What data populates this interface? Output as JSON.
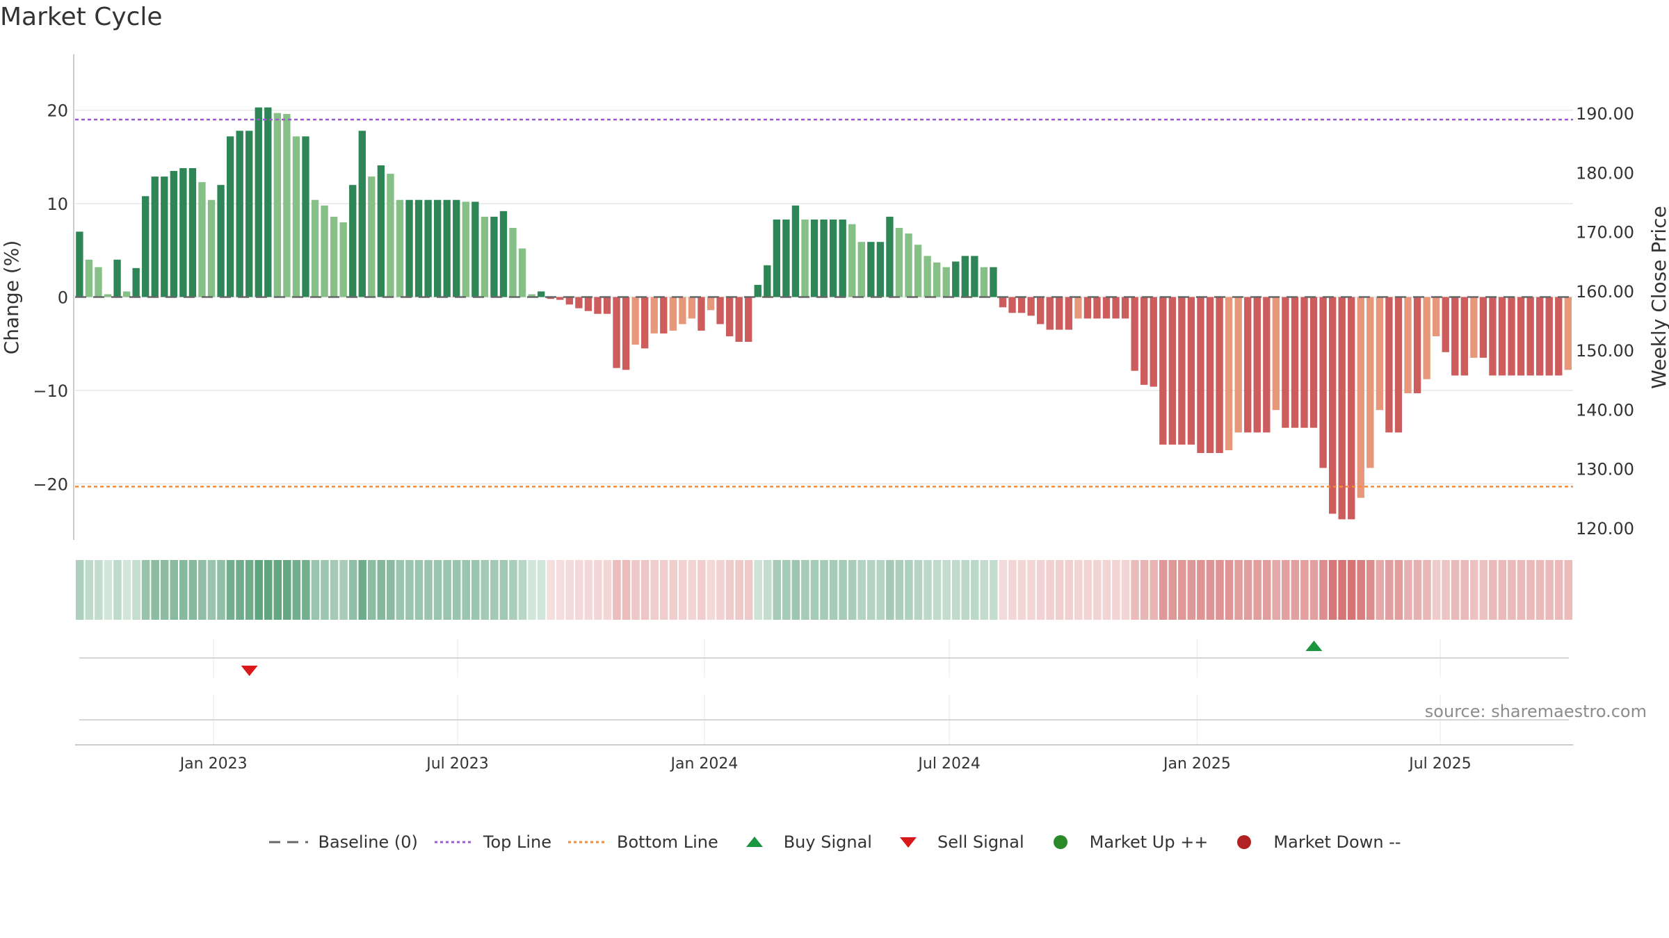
{
  "chart_data": {
    "type": "bar",
    "title": "Market Cycle",
    "ylabel": "Change (%)",
    "y2label": "Weekly Close Price",
    "ylim": [
      -26,
      26
    ],
    "y2lim": [
      118,
      200
    ],
    "yticks": [
      "20",
      "10",
      "0",
      "−10",
      "−20"
    ],
    "ytick_values": [
      20,
      10,
      0,
      -10,
      -20
    ],
    "y2ticks": [
      "190.00",
      "180.00",
      "170.00",
      "160.00",
      "150.00",
      "140.00",
      "130.00",
      "120.00"
    ],
    "y2tick_values": [
      190,
      180,
      170,
      160,
      150,
      140,
      130,
      120
    ],
    "xticks": [
      "Jan 2023",
      "Jul 2023",
      "Jan 2024",
      "Jul 2024",
      "Jan 2025",
      "Jul 2025"
    ],
    "xtick_positions": [
      14.7,
      40.6,
      66.8,
      92.8,
      119.1,
      144.9
    ],
    "top_line": 19,
    "bottom_line": -20.3,
    "baseline": 0,
    "values": [
      7,
      4,
      3.2,
      0.3,
      4,
      0.6,
      3.1,
      10.8,
      12.9,
      12.9,
      13.5,
      13.8,
      13.8,
      12.3,
      10.4,
      12,
      17.2,
      17.8,
      17.8,
      20.3,
      20.3,
      19.7,
      19.6,
      17.2,
      17.2,
      10.4,
      9.8,
      8.6,
      8,
      12,
      17.8,
      12.9,
      14.1,
      13.2,
      10.4,
      10.4,
      10.4,
      10.4,
      10.4,
      10.4,
      10.4,
      10.2,
      10.2,
      8.6,
      8.6,
      9.2,
      7.4,
      5.2,
      0.3,
      0.6,
      -0.2,
      -0.3,
      -0.8,
      -1.2,
      -1.5,
      -1.8,
      -1.8,
      -7.6,
      -7.8,
      -5.1,
      -5.5,
      -3.9,
      -3.9,
      -3.6,
      -2.9,
      -2.3,
      -3.6,
      -1.4,
      -2.9,
      -4.2,
      -4.8,
      -4.8,
      1.3,
      3.4,
      8.3,
      8.3,
      9.8,
      8.3,
      8.3,
      8.3,
      8.3,
      8.3,
      7.8,
      5.9,
      5.9,
      5.9,
      8.6,
      7.4,
      6.8,
      5.6,
      4.4,
      3.7,
      3.2,
      3.8,
      4.4,
      4.4,
      3.2,
      3.2,
      -1.1,
      -1.7,
      -1.7,
      -2.0,
      -2.9,
      -3.5,
      -3.5,
      -3.5,
      -2.3,
      -2.3,
      -2.3,
      -2.3,
      -2.3,
      -2.3,
      -7.9,
      -9.4,
      -9.6,
      -15.8,
      -15.8,
      -15.8,
      -15.8,
      -16.7,
      -16.7,
      -16.7,
      -16.4,
      -14.5,
      -14.5,
      -14.5,
      -14.5,
      -12.1,
      -14,
      -14,
      -14,
      -14,
      -18.3,
      -23.2,
      -23.8,
      -23.8,
      -21.5,
      -18.3,
      -12.1,
      -14.5,
      -14.5,
      -10.3,
      -10.3,
      -8.8,
      -4.2,
      -5.9,
      -8.4,
      -8.4,
      -6.5,
      -6.5,
      -8.4,
      -8.4,
      -8.4,
      -8.4,
      -8.4,
      -8.4,
      -8.4,
      -8.4,
      -7.8
    ],
    "sell_signals": [
      18.5
    ],
    "buy_signals": [
      131.5
    ],
    "legend": [
      "Baseline (0)",
      "Top Line",
      "Bottom Line",
      "Buy Signal",
      "Sell Signal",
      "Market Up ++",
      "Market Down --"
    ]
  },
  "colors": {
    "up_strong": "#2e8656",
    "up_weak": "#86c087",
    "down_strong": "#cd5c5c",
    "down_weak": "#e8987a",
    "top_line": "#9b59d0",
    "bottom_line": "#f28c3b",
    "baseline": "#666666",
    "buy": "#1a9641",
    "sell": "#d7191c",
    "market_up": "#2a8a2a",
    "market_down": "#b22222"
  },
  "source_text": "source: sharemaestro.com"
}
